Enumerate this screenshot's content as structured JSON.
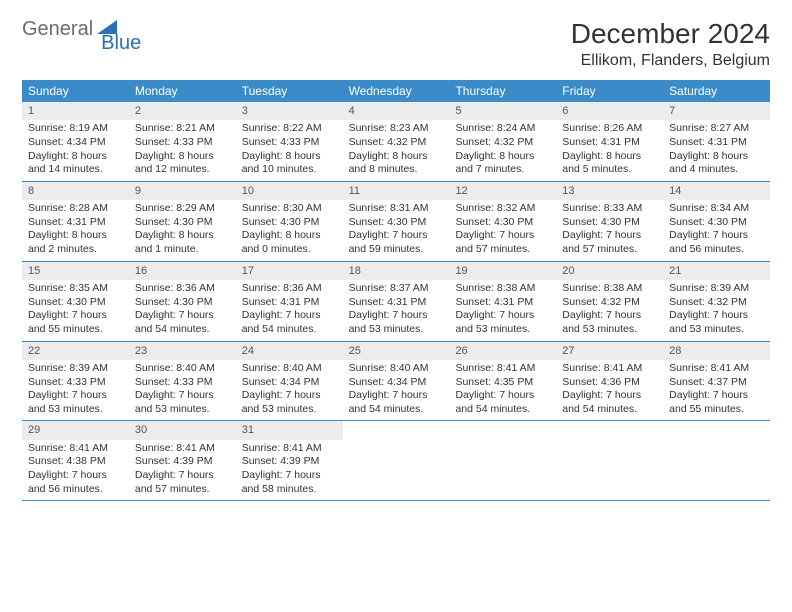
{
  "brand": {
    "part1": "General",
    "part2": "Blue"
  },
  "title": "December 2024",
  "location": "Ellikom, Flanders, Belgium",
  "colors": {
    "header_bg": "#3b8bc9",
    "header_fg": "#ffffff",
    "daynum_bg": "#ececec",
    "border": "#3b8bc9",
    "logo_gray": "#6b6b6b",
    "logo_blue": "#2b6fb5"
  },
  "day_labels": [
    "Sunday",
    "Monday",
    "Tuesday",
    "Wednesday",
    "Thursday",
    "Friday",
    "Saturday"
  ],
  "weeks": [
    [
      {
        "n": "1",
        "sr": "Sunrise: 8:19 AM",
        "ss": "Sunset: 4:34 PM",
        "dl": "Daylight: 8 hours and 14 minutes."
      },
      {
        "n": "2",
        "sr": "Sunrise: 8:21 AM",
        "ss": "Sunset: 4:33 PM",
        "dl": "Daylight: 8 hours and 12 minutes."
      },
      {
        "n": "3",
        "sr": "Sunrise: 8:22 AM",
        "ss": "Sunset: 4:33 PM",
        "dl": "Daylight: 8 hours and 10 minutes."
      },
      {
        "n": "4",
        "sr": "Sunrise: 8:23 AM",
        "ss": "Sunset: 4:32 PM",
        "dl": "Daylight: 8 hours and 8 minutes."
      },
      {
        "n": "5",
        "sr": "Sunrise: 8:24 AM",
        "ss": "Sunset: 4:32 PM",
        "dl": "Daylight: 8 hours and 7 minutes."
      },
      {
        "n": "6",
        "sr": "Sunrise: 8:26 AM",
        "ss": "Sunset: 4:31 PM",
        "dl": "Daylight: 8 hours and 5 minutes."
      },
      {
        "n": "7",
        "sr": "Sunrise: 8:27 AM",
        "ss": "Sunset: 4:31 PM",
        "dl": "Daylight: 8 hours and 4 minutes."
      }
    ],
    [
      {
        "n": "8",
        "sr": "Sunrise: 8:28 AM",
        "ss": "Sunset: 4:31 PM",
        "dl": "Daylight: 8 hours and 2 minutes."
      },
      {
        "n": "9",
        "sr": "Sunrise: 8:29 AM",
        "ss": "Sunset: 4:30 PM",
        "dl": "Daylight: 8 hours and 1 minute."
      },
      {
        "n": "10",
        "sr": "Sunrise: 8:30 AM",
        "ss": "Sunset: 4:30 PM",
        "dl": "Daylight: 8 hours and 0 minutes."
      },
      {
        "n": "11",
        "sr": "Sunrise: 8:31 AM",
        "ss": "Sunset: 4:30 PM",
        "dl": "Daylight: 7 hours and 59 minutes."
      },
      {
        "n": "12",
        "sr": "Sunrise: 8:32 AM",
        "ss": "Sunset: 4:30 PM",
        "dl": "Daylight: 7 hours and 57 minutes."
      },
      {
        "n": "13",
        "sr": "Sunrise: 8:33 AM",
        "ss": "Sunset: 4:30 PM",
        "dl": "Daylight: 7 hours and 57 minutes."
      },
      {
        "n": "14",
        "sr": "Sunrise: 8:34 AM",
        "ss": "Sunset: 4:30 PM",
        "dl": "Daylight: 7 hours and 56 minutes."
      }
    ],
    [
      {
        "n": "15",
        "sr": "Sunrise: 8:35 AM",
        "ss": "Sunset: 4:30 PM",
        "dl": "Daylight: 7 hours and 55 minutes."
      },
      {
        "n": "16",
        "sr": "Sunrise: 8:36 AM",
        "ss": "Sunset: 4:30 PM",
        "dl": "Daylight: 7 hours and 54 minutes."
      },
      {
        "n": "17",
        "sr": "Sunrise: 8:36 AM",
        "ss": "Sunset: 4:31 PM",
        "dl": "Daylight: 7 hours and 54 minutes."
      },
      {
        "n": "18",
        "sr": "Sunrise: 8:37 AM",
        "ss": "Sunset: 4:31 PM",
        "dl": "Daylight: 7 hours and 53 minutes."
      },
      {
        "n": "19",
        "sr": "Sunrise: 8:38 AM",
        "ss": "Sunset: 4:31 PM",
        "dl": "Daylight: 7 hours and 53 minutes."
      },
      {
        "n": "20",
        "sr": "Sunrise: 8:38 AM",
        "ss": "Sunset: 4:32 PM",
        "dl": "Daylight: 7 hours and 53 minutes."
      },
      {
        "n": "21",
        "sr": "Sunrise: 8:39 AM",
        "ss": "Sunset: 4:32 PM",
        "dl": "Daylight: 7 hours and 53 minutes."
      }
    ],
    [
      {
        "n": "22",
        "sr": "Sunrise: 8:39 AM",
        "ss": "Sunset: 4:33 PM",
        "dl": "Daylight: 7 hours and 53 minutes."
      },
      {
        "n": "23",
        "sr": "Sunrise: 8:40 AM",
        "ss": "Sunset: 4:33 PM",
        "dl": "Daylight: 7 hours and 53 minutes."
      },
      {
        "n": "24",
        "sr": "Sunrise: 8:40 AM",
        "ss": "Sunset: 4:34 PM",
        "dl": "Daylight: 7 hours and 53 minutes."
      },
      {
        "n": "25",
        "sr": "Sunrise: 8:40 AM",
        "ss": "Sunset: 4:34 PM",
        "dl": "Daylight: 7 hours and 54 minutes."
      },
      {
        "n": "26",
        "sr": "Sunrise: 8:41 AM",
        "ss": "Sunset: 4:35 PM",
        "dl": "Daylight: 7 hours and 54 minutes."
      },
      {
        "n": "27",
        "sr": "Sunrise: 8:41 AM",
        "ss": "Sunset: 4:36 PM",
        "dl": "Daylight: 7 hours and 54 minutes."
      },
      {
        "n": "28",
        "sr": "Sunrise: 8:41 AM",
        "ss": "Sunset: 4:37 PM",
        "dl": "Daylight: 7 hours and 55 minutes."
      }
    ],
    [
      {
        "n": "29",
        "sr": "Sunrise: 8:41 AM",
        "ss": "Sunset: 4:38 PM",
        "dl": "Daylight: 7 hours and 56 minutes."
      },
      {
        "n": "30",
        "sr": "Sunrise: 8:41 AM",
        "ss": "Sunset: 4:39 PM",
        "dl": "Daylight: 7 hours and 57 minutes."
      },
      {
        "n": "31",
        "sr": "Sunrise: 8:41 AM",
        "ss": "Sunset: 4:39 PM",
        "dl": "Daylight: 7 hours and 58 minutes."
      },
      null,
      null,
      null,
      null
    ]
  ]
}
